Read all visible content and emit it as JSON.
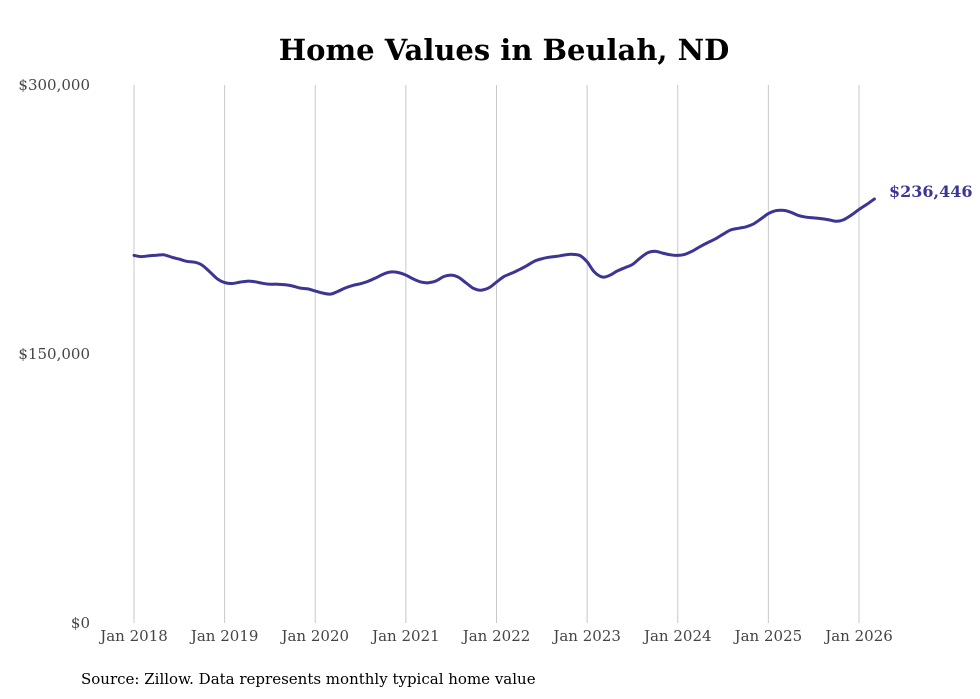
{
  "chart_data": {
    "type": "line",
    "title": "Home Values in Beulah, ND",
    "source": "Source: Zillow. Data represents monthly typical home value",
    "ylim": [
      0,
      300000
    ],
    "y_ticks": [
      {
        "value": 0,
        "label": "$0"
      },
      {
        "value": 150000,
        "label": "$150,000"
      },
      {
        "value": 300000,
        "label": "$300,000"
      }
    ],
    "x_ticks": [
      {
        "value": 2018,
        "label": "Jan 2018"
      },
      {
        "value": 2019,
        "label": "Jan 2019"
      },
      {
        "value": 2020,
        "label": "Jan 2020"
      },
      {
        "value": 2021,
        "label": "Jan 2021"
      },
      {
        "value": 2022,
        "label": "Jan 2022"
      },
      {
        "value": 2023,
        "label": "Jan 2023"
      },
      {
        "value": 2024,
        "label": "Jan 2024"
      },
      {
        "value": 2025,
        "label": "Jan 2025"
      },
      {
        "value": 2026,
        "label": "Jan 2026"
      }
    ],
    "xlim": [
      2018,
      2026.2
    ],
    "line_color": "#3b3593",
    "last_value_label": "$236,446",
    "series": [
      {
        "name": "Typical home value",
        "x": [
          2018.0,
          2018.08,
          2018.17,
          2018.25,
          2018.33,
          2018.42,
          2018.5,
          2018.58,
          2018.67,
          2018.75,
          2018.83,
          2018.92,
          2019.0,
          2019.08,
          2019.17,
          2019.25,
          2019.33,
          2019.42,
          2019.5,
          2019.58,
          2019.67,
          2019.75,
          2019.83,
          2019.92,
          2020.0,
          2020.08,
          2020.17,
          2020.25,
          2020.33,
          2020.42,
          2020.5,
          2020.58,
          2020.67,
          2020.75,
          2020.83,
          2020.92,
          2021.0,
          2021.08,
          2021.17,
          2021.25,
          2021.33,
          2021.42,
          2021.5,
          2021.58,
          2021.67,
          2021.75,
          2021.83,
          2021.92,
          2022.0,
          2022.08,
          2022.17,
          2022.25,
          2022.33,
          2022.42,
          2022.5,
          2022.58,
          2022.67,
          2022.75,
          2022.83,
          2022.92,
          2023.0,
          2023.08,
          2023.17,
          2023.25,
          2023.33,
          2023.42,
          2023.5,
          2023.58,
          2023.67,
          2023.75,
          2023.83,
          2023.92,
          2024.0,
          2024.08,
          2024.17,
          2024.25,
          2024.33,
          2024.42,
          2024.5,
          2024.58,
          2024.67,
          2024.75,
          2024.83,
          2024.92,
          2025.0,
          2025.08,
          2025.17,
          2025.25,
          2025.33,
          2025.42,
          2025.5,
          2025.58,
          2025.67,
          2025.75,
          2025.83,
          2025.92,
          2026.0,
          2026.08,
          2026.17
        ],
        "values": [
          205000,
          204300,
          204800,
          205100,
          205300,
          203900,
          202900,
          201700,
          201200,
          199600,
          196100,
          191900,
          189800,
          189300,
          190100,
          190600,
          190300,
          189400,
          188900,
          188900,
          188600,
          187900,
          186800,
          186300,
          185100,
          184000,
          183400,
          184900,
          186800,
          188300,
          189200,
          190500,
          192500,
          194500,
          195700,
          195400,
          194000,
          191900,
          190100,
          189700,
          190700,
          193200,
          194000,
          192800,
          189400,
          186500,
          185600,
          187000,
          190100,
          193100,
          195100,
          197000,
          199100,
          201800,
          203100,
          204000,
          204500,
          205200,
          205600,
          204900,
          201400,
          195700,
          192900,
          193900,
          196200,
          198200,
          199900,
          203300,
          206500,
          207300,
          206300,
          205300,
          205000,
          205600,
          207600,
          210000,
          212100,
          214300,
          216800,
          219100,
          220100,
          220900,
          222400,
          225400,
          228300,
          229900,
          230100,
          229000,
          227300,
          226300,
          225900,
          225500,
          224800,
          224000,
          224900,
          227600,
          230600,
          233200,
          236446
        ]
      }
    ]
  }
}
